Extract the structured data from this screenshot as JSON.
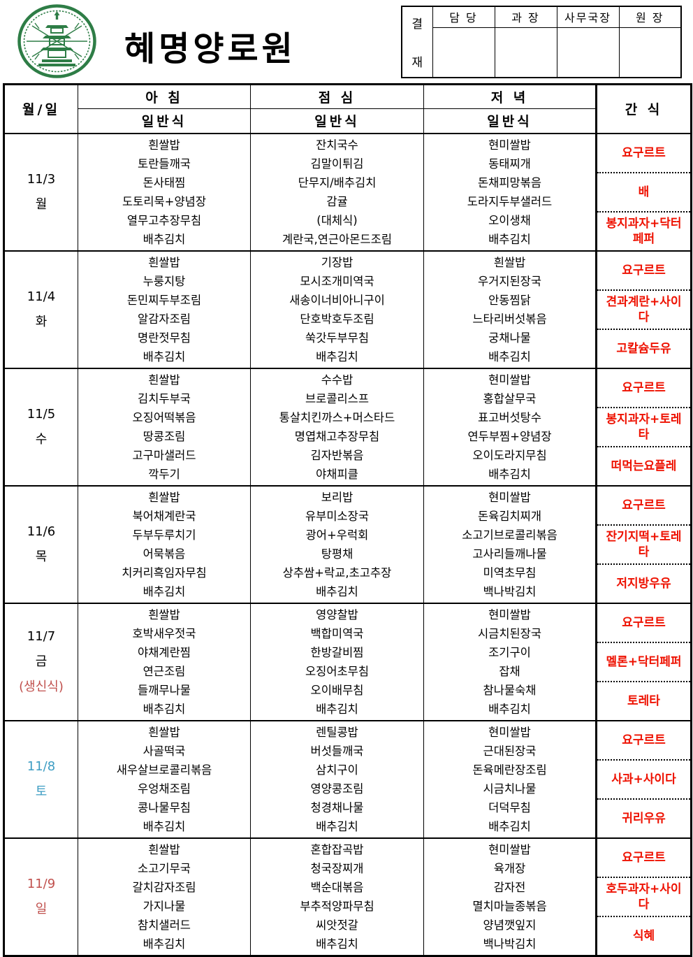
{
  "header": {
    "title": "혜명양로원",
    "logo": "temple-pagoda-seal",
    "approval": {
      "label_top": "결",
      "label_bottom": "재",
      "columns": [
        "담  당",
        "과  장",
        "사무국장",
        "원  장"
      ]
    }
  },
  "table": {
    "col_day": "월/일",
    "col_breakfast": "아  침",
    "col_lunch": "점  심",
    "col_dinner": "저  녁",
    "col_snack": "간 식",
    "sub_header": "일반식",
    "rows": [
      {
        "date": "11/3",
        "weekday": "월",
        "note": "",
        "date_color": "#000000",
        "breakfast": [
          "흰쌀밥",
          "토란들깨국",
          "돈사태찜",
          "도토리묵+양념장",
          "열무고추장무침",
          "배추김치"
        ],
        "lunch": [
          "잔치국수",
          "김말이튀김",
          "단무지/배추김치",
          "감귤",
          "(대체식)",
          "계란국,연근아몬드조림"
        ],
        "dinner": [
          "현미쌀밥",
          "동태찌개",
          "돈채피망볶음",
          "도라지두부샐러드",
          "오이생채",
          "배추김치"
        ],
        "snacks": [
          "요구르트",
          "배",
          "봉지과자+닥터페퍼"
        ]
      },
      {
        "date": "11/4",
        "weekday": "화",
        "note": "",
        "date_color": "#000000",
        "breakfast": [
          "흰쌀밥",
          "누룽지탕",
          "돈민찌두부조림",
          "알감자조림",
          "명란젓무침",
          "배추김치"
        ],
        "lunch": [
          "기장밥",
          "모시조개미역국",
          "새송이너비아니구이",
          "단호박호두조림",
          "쑥갓두부무침",
          "배추김치"
        ],
        "dinner": [
          "흰쌀밥",
          "우거지된장국",
          "안동찜닭",
          "느타리버섯볶음",
          "궁채나물",
          "배추김치"
        ],
        "snacks": [
          "요구르트",
          "견과계란+사이다",
          "고칼슘두유"
        ]
      },
      {
        "date": "11/5",
        "weekday": "수",
        "note": "",
        "date_color": "#000000",
        "breakfast": [
          "흰쌀밥",
          "김치두부국",
          "오징어떡볶음",
          "땅콩조림",
          "고구마샐러드",
          "깍두기"
        ],
        "lunch": [
          "수수밥",
          "브로콜리스프",
          "통살치킨까스+머스타드",
          "명엽채고추장무침",
          "김자반볶음",
          "야채피클"
        ],
        "dinner": [
          "현미쌀밥",
          "홍합살무국",
          "표고버섯탕수",
          "연두부찜+양념장",
          "오이도라지무침",
          "배추김치"
        ],
        "snacks": [
          "요구르트",
          "봉지과자+토레타",
          "떠먹는요플레"
        ]
      },
      {
        "date": "11/6",
        "weekday": "목",
        "note": "",
        "date_color": "#000000",
        "breakfast": [
          "흰쌀밥",
          "북어채계란국",
          "두부두루치기",
          "어묵볶음",
          "치커리흑임자무침",
          "배추김치"
        ],
        "lunch": [
          "보리밥",
          "유부미소장국",
          "광어+우럭회",
          "탕평채",
          "상추쌈+락교,초고추장",
          "배추김치"
        ],
        "dinner": [
          "현미쌀밥",
          "돈육김치찌개",
          "소고기브로콜리볶음",
          "고사리들깨나물",
          "미역초무침",
          "백나박김치"
        ],
        "snacks": [
          "요구르트",
          "잔기지떡+토레타",
          "저지방우유"
        ]
      },
      {
        "date": "11/7",
        "weekday": "금",
        "note": "(생신식)",
        "date_color": "#000000",
        "breakfast": [
          "흰쌀밥",
          "호박새우젓국",
          "야채계란찜",
          "연근조림",
          "들깨무나물",
          "배추김치"
        ],
        "lunch": [
          "영양찰밥",
          "백합미역국",
          "한방갈비찜",
          "오징어초무침",
          "오이배무침",
          "배추김치"
        ],
        "dinner": [
          "현미쌀밥",
          "시금치된장국",
          "조기구이",
          "잡채",
          "참나물숙채",
          "배추김치"
        ],
        "snacks": [
          "요구르트",
          "멜론+닥터페퍼",
          "토레타"
        ]
      },
      {
        "date": "11/8",
        "weekday": "토",
        "note": "",
        "date_color": "#3d9dc3",
        "breakfast": [
          "흰쌀밥",
          "사골떡국",
          "새우살브로콜리볶음",
          "우엉채조림",
          "콩나물무침",
          "배추김치"
        ],
        "lunch": [
          "렌틸콩밥",
          "버섯들깨국",
          "삼치구이",
          "영양콩조림",
          "청경채나물",
          "배추김치"
        ],
        "dinner": [
          "현미쌀밥",
          "근대된장국",
          "돈육메란장조림",
          "시금치나물",
          "더덕무침",
          "배추김치"
        ],
        "snacks": [
          "요구르트",
          "사과+사이다",
          "귀리우유"
        ]
      },
      {
        "date": "11/9",
        "weekday": "일",
        "note": "",
        "date_color": "#c0504d",
        "breakfast": [
          "흰쌀밥",
          "소고기무국",
          "갈치감자조림",
          "가지나물",
          "참치샐러드",
          "배추김치"
        ],
        "lunch": [
          "혼합잡곡밥",
          "청국장찌개",
          "백순대볶음",
          "부추적양파무침",
          "씨앗젓갈",
          "배추김치"
        ],
        "dinner": [
          "현미쌀밥",
          "육개장",
          "감자전",
          "멸치마늘종볶음",
          "양념깻잎지",
          "백나박김치"
        ],
        "snacks": [
          "요구르트",
          "호두과자+사이다",
          "식혜"
        ]
      }
    ]
  },
  "colors": {
    "snack_red": "#ee1100",
    "sunday_red": "#c0504d",
    "saturday_blue": "#3d9dc3",
    "logo_green": "#2e7d46"
  }
}
